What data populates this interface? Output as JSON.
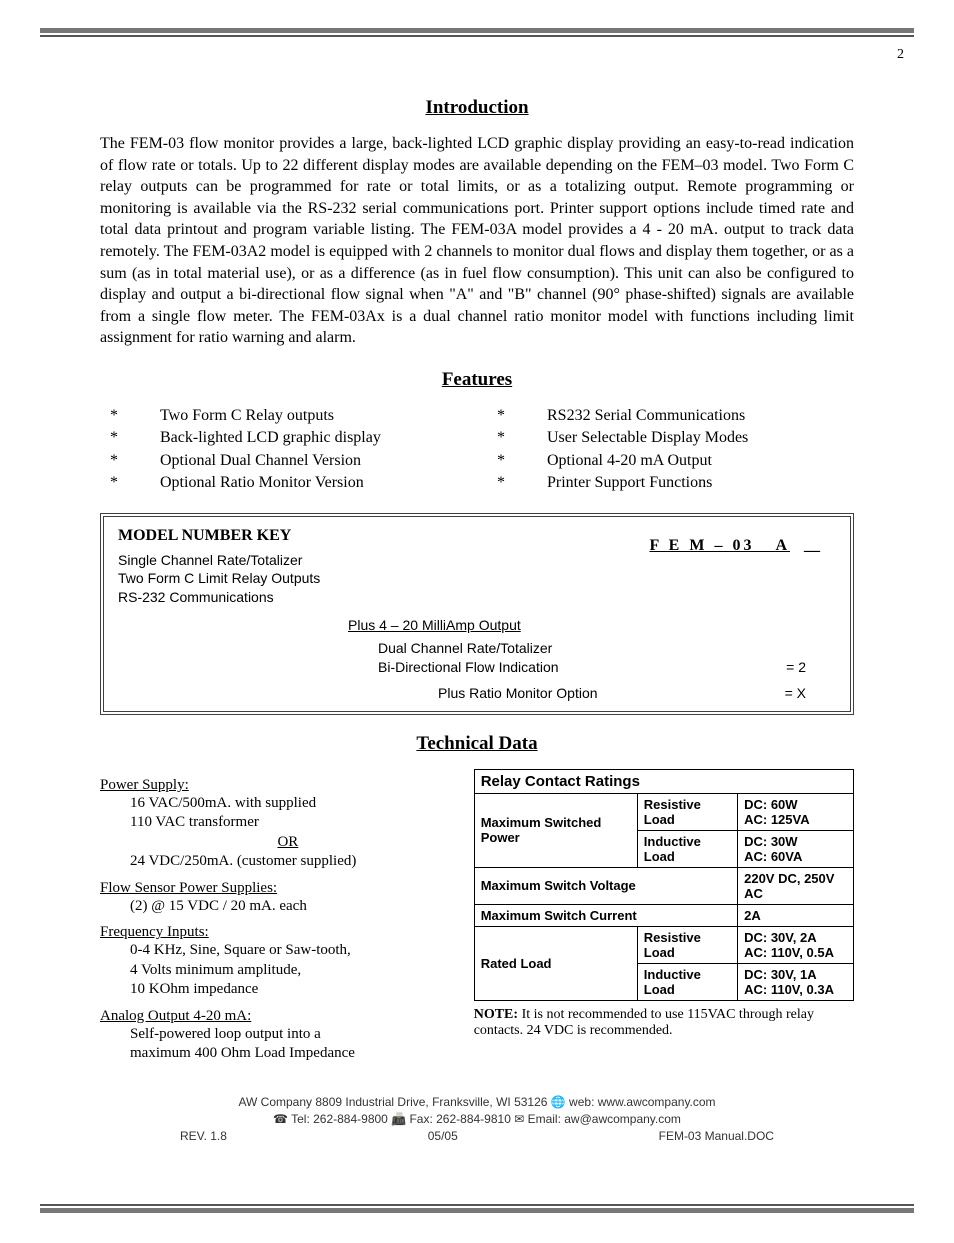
{
  "page_number": "2",
  "headings": {
    "intro": "Introduction",
    "features": "Features",
    "tech": "Technical Data"
  },
  "intro_text": "The FEM-03 flow monitor provides a large, back-lighted LCD graphic display providing an easy-to-read indication of flow rate or totals. Up to 22 different display modes are available depending on the FEM–03 model.  Two Form C relay outputs can be programmed for rate or total limits, or as a totalizing output. Remote programming or monitoring is available via the RS-232 serial communications port. Printer support options include timed rate and total data printout and program variable listing. The FEM-03A model provides a 4 - 20 mA. output to track data remotely. The FEM-03A2 model is equipped with 2 channels to monitor dual flows and display them together, or as a sum (as in total material use), or as a difference (as in fuel flow consumption). This unit can also be configured to display and output a bi-directional flow signal when \"A\" and \"B\" channel (90° phase-shifted) signals are available from a single flow meter. The FEM-03Ax is a dual channel ratio monitor model with functions including limit assignment for ratio warning and alarm.",
  "features": {
    "left": [
      "Two Form C Relay outputs",
      "Back-lighted LCD graphic display",
      "Optional Dual Channel Version",
      "Optional Ratio Monitor Version"
    ],
    "right": [
      "RS232 Serial Communications",
      "User Selectable Display Modes",
      "Optional 4-20 mA Output",
      "Printer Support Functions"
    ]
  },
  "model_key": {
    "title": "MODEL NUMBER KEY",
    "code": "F E M – 03",
    "code_suffix": "A",
    "trail": "__",
    "base_lines": [
      "Single Channel Rate/Totalizer",
      "Two Form C Limit Relay Outputs",
      "RS-232 Communications"
    ],
    "plus_line": "Plus  4 – 20 MilliAmp Output",
    "dual_lines": [
      "Dual Channel Rate/Totalizer",
      "Bi-Directional Flow Indication"
    ],
    "dual_eq": "= 2",
    "ratio_line": "Plus Ratio Monitor Option",
    "ratio_eq": "= X"
  },
  "tech_left": {
    "power_supply_head": "Power Supply:",
    "power_supply_l1": "16 VAC/500mA. with supplied",
    "power_supply_l2": "110 VAC transformer",
    "or": "OR",
    "power_supply_l3": "24 VDC/250mA. (customer supplied)",
    "flow_sensor_head": "Flow Sensor Power Supplies:",
    "flow_sensor_l1": "(2) @ 15 VDC / 20 mA. each",
    "freq_head": "Frequency Inputs:",
    "freq_l1": "0-4 KHz, Sine, Square or Saw-tooth,",
    "freq_l2": "4 Volts minimum amplitude,",
    "freq_l3": "10 KOhm impedance",
    "analog_head": "Analog Output 4-20 mA:",
    "analog_l1": "Self-powered loop output into a",
    "analog_l2": "maximum 400 Ohm Load Impedance"
  },
  "relay_table": {
    "title": "Relay Contact Ratings",
    "rows": [
      {
        "c1": "Maximum Switched Power",
        "c2": "Resistive Load",
        "c3": "DC: 60W\nAC: 125VA"
      },
      {
        "c1": "",
        "c2": "Inductive Load",
        "c3": "DC: 30W\nAC: 60VA"
      },
      {
        "c1": "Maximum Switch Voltage",
        "c2": "",
        "c3": "220V DC, 250V AC"
      },
      {
        "c1": "Maximum Switch Current",
        "c2": "",
        "c3": "2A"
      },
      {
        "c1": "Rated Load",
        "c2": "Resistive Load",
        "c3": "DC: 30V, 2A\nAC: 110V, 0.5A"
      },
      {
        "c1": "",
        "c2": "Inductive Load",
        "c3": "DC: 30V, 1A\nAC: 110V, 0.3A"
      }
    ],
    "note_bold": "NOTE:",
    "note_text": " It is not recommended to use 115VAC through relay contacts. 24 VDC is recommended."
  },
  "footer": {
    "line1": "AW Company 8809 Industrial Drive, Franksville, WI 53126  🌐 web: www.awcompany.com",
    "line2": "☎ Tel:  262-884-9800 📠 Fax:  262-884-9810 ✉ Email: aw@awcompany.com",
    "rev": "REV. 1.8",
    "date": "05/05",
    "doc": "FEM-03 Manual.DOC"
  }
}
